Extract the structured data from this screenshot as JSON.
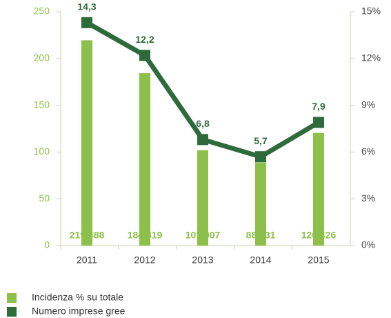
{
  "chart_data": {
    "type": "bar-line",
    "categories": [
      "2011",
      "2012",
      "2013",
      "2014",
      "2015"
    ],
    "series": [
      {
        "name": "Incidenza % su totale",
        "color": "#8dc04a",
        "type": "bar",
        "values": [
          219.488,
          184.319,
          101.907,
          88.831,
          120.426
        ]
      },
      {
        "name": "Numero imprese gree",
        "color": "#2e6b3b",
        "type": "line",
        "axis": "y2",
        "values": [
          14.3,
          12.2,
          6.8,
          5.7,
          7.9
        ],
        "value_labels": [
          "14,3",
          "12,2",
          "6,8",
          "5,7",
          "7,9"
        ]
      }
    ],
    "ylim": [
      0,
      250
    ],
    "yticks": [
      0,
      50,
      100,
      150,
      200,
      250
    ],
    "y2lim": [
      0,
      15
    ],
    "y2ticks": [
      {
        "value": 0,
        "label": "0%"
      },
      {
        "value": 3,
        "label": "3%"
      },
      {
        "value": 6,
        "label": "6%"
      },
      {
        "value": 9,
        "label": "9%"
      },
      {
        "value": 12,
        "label": "12%"
      },
      {
        "value": 15,
        "label": "15%"
      }
    ],
    "legend": "bottom-left"
  }
}
